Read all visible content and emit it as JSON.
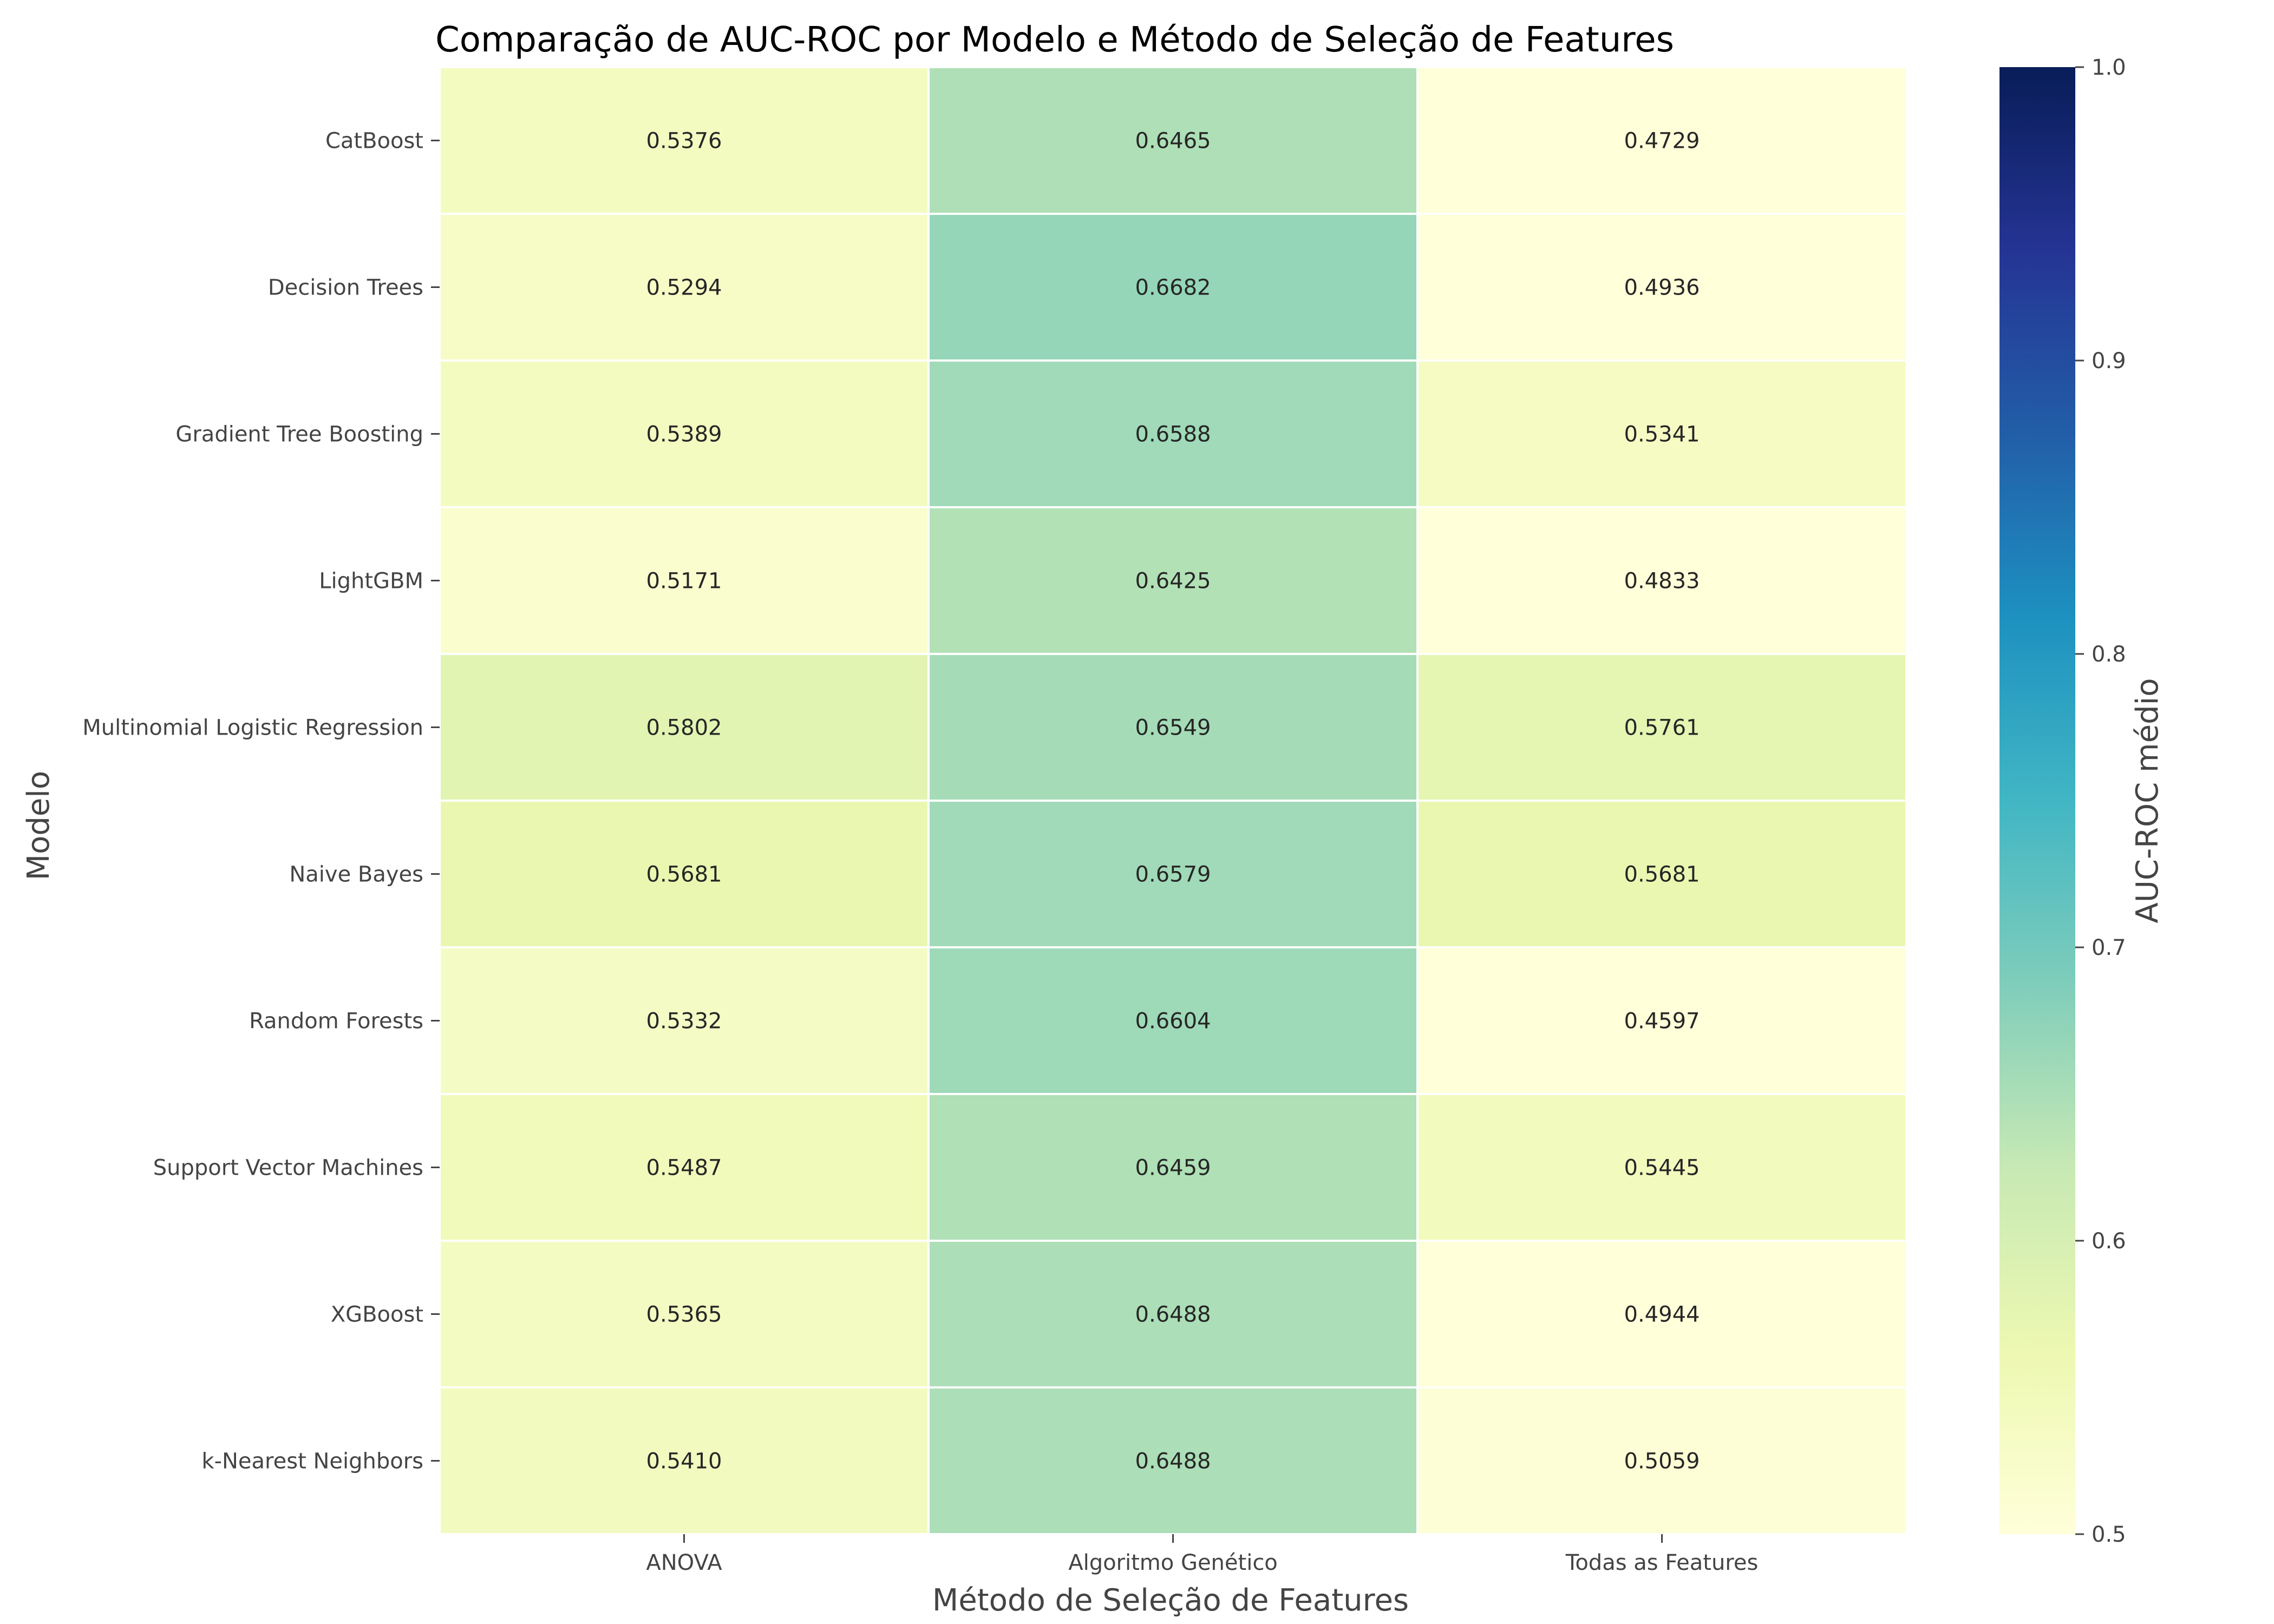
{
  "chart_data": {
    "type": "heatmap",
    "title": "Comparação de AUC-ROC por Modelo e Método de Seleção de Features",
    "xlabel": "Método de Seleção de Features",
    "ylabel": "Modelo",
    "colorbar_label": "AUC-ROC médio",
    "columns": [
      "ANOVA",
      "Algoritmo Genético",
      "Todas as Features"
    ],
    "rows": [
      "CatBoost",
      "Decision Trees",
      "Gradient Tree Boosting",
      "LightGBM",
      "Multinomial Logistic Regression",
      "Naive Bayes",
      "Random Forests",
      "Support Vector Machines",
      "XGBoost",
      "k-Nearest Neighbors"
    ],
    "values": [
      [
        0.5376,
        0.6465,
        0.4729
      ],
      [
        0.5294,
        0.6682,
        0.4936
      ],
      [
        0.5389,
        0.6588,
        0.5341
      ],
      [
        0.5171,
        0.6425,
        0.4833
      ],
      [
        0.5802,
        0.6549,
        0.5761
      ],
      [
        0.5681,
        0.6579,
        0.5681
      ],
      [
        0.5332,
        0.6604,
        0.4597
      ],
      [
        0.5487,
        0.6459,
        0.5445
      ],
      [
        0.5365,
        0.6488,
        0.4944
      ],
      [
        0.541,
        0.6488,
        0.5059
      ]
    ],
    "colorscale": "YlGnBu",
    "vmin": 0.5,
    "vmax": 1.0,
    "colorbar_ticks": [
      0.5,
      0.6,
      0.7,
      0.8,
      0.9,
      1.0
    ],
    "colorbar_tick_labels": [
      "0.5",
      "0.6",
      "0.7",
      "0.8",
      "0.9",
      "1.0"
    ],
    "value_format_decimals": 4,
    "colorbar_position": "right"
  }
}
